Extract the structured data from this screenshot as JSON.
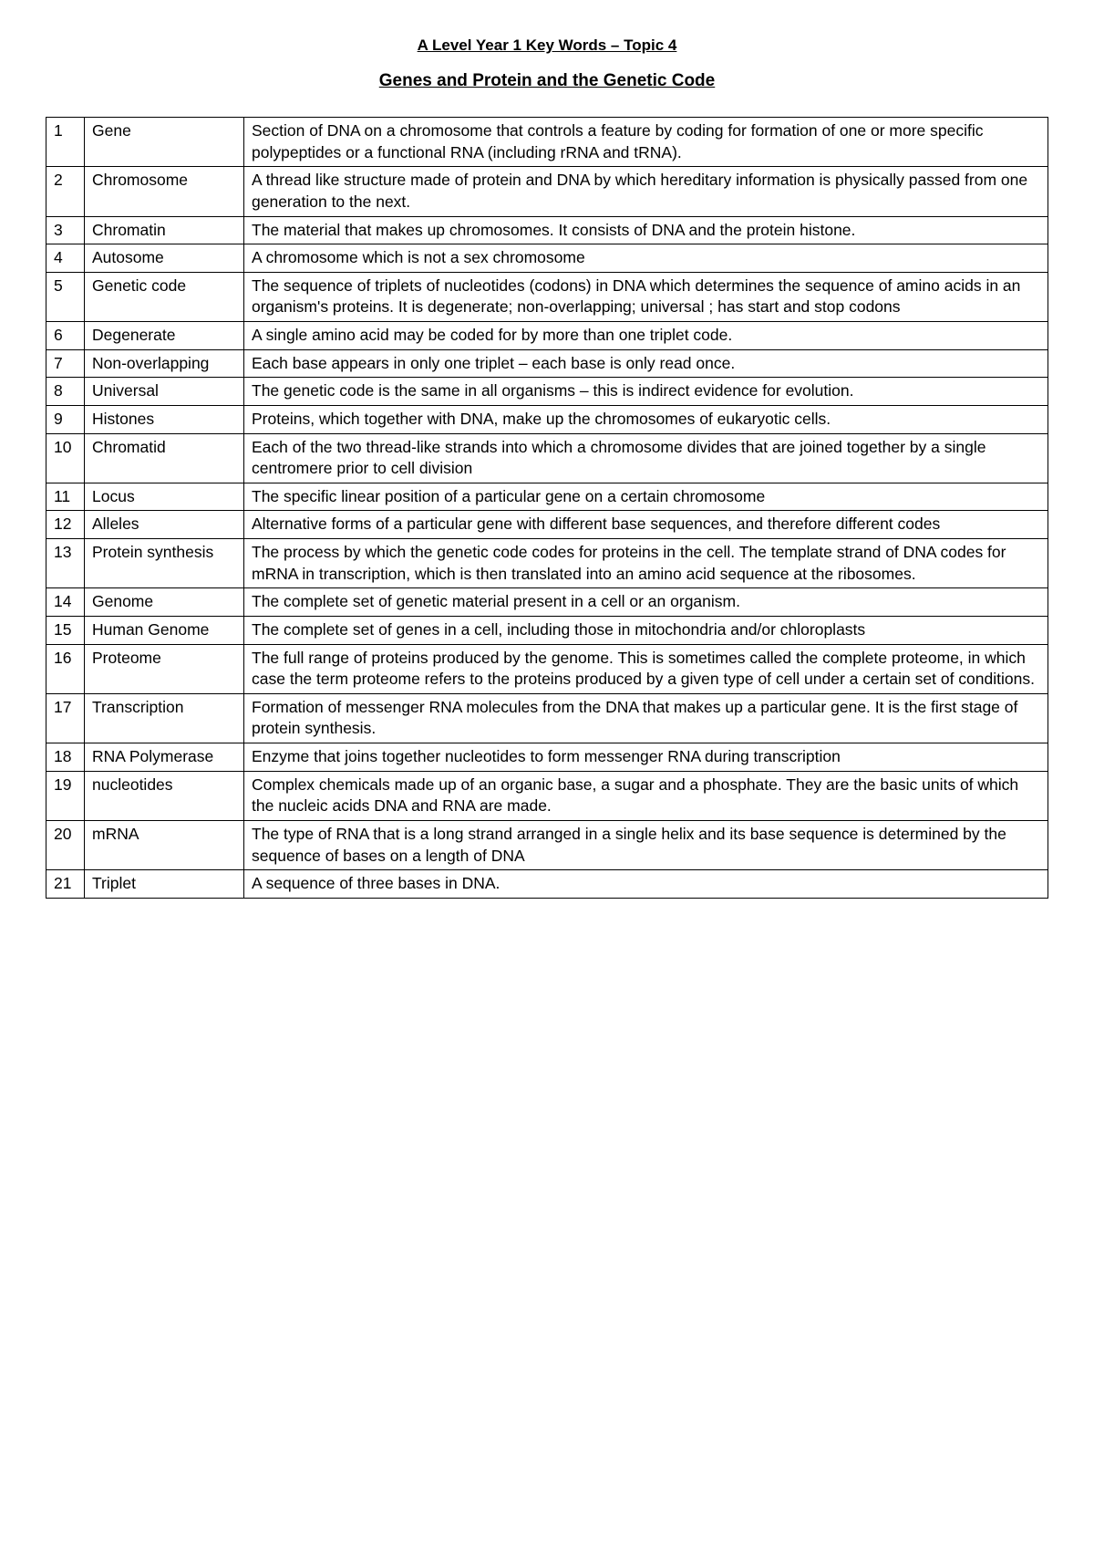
{
  "heading1": "A Level Year 1 Key Words – Topic 4",
  "heading2": "Genes and Protein and the Genetic Code",
  "columns": {
    "num_width": 42,
    "term_width": 175
  },
  "rows": [
    {
      "n": "1",
      "term": "Gene",
      "def": "Section of DNA on a chromosome that controls a feature by coding for formation of one or more specific polypeptides or a functional RNA (including rRNA and tRNA)."
    },
    {
      "n": "2",
      "term": "Chromosome",
      "def": "A thread like structure made of protein and DNA by which hereditary information is physically passed from one generation to the next."
    },
    {
      "n": "3",
      "term": "Chromatin",
      "def": "The material that makes up chromosomes. It consists of DNA and the protein histone."
    },
    {
      "n": "4",
      "term": "Autosome",
      "def": "A chromosome which is not a sex chromosome"
    },
    {
      "n": "5",
      "term": "Genetic code",
      "def": "The sequence of triplets of nucleotides (codons) in DNA which determines the sequence of amino acids in an organism's proteins. It is degenerate; non-overlapping; universal ; has start and stop codons"
    },
    {
      "n": "6",
      "term": "Degenerate",
      "def": "A single amino acid may be coded for by more than one triplet code."
    },
    {
      "n": "7",
      "term": "Non-overlapping",
      "def": "Each base appears in only one triplet – each base is only read once."
    },
    {
      "n": "8",
      "term": "Universal",
      "def": "The genetic code is the same in all organisms  – this is indirect evidence for evolution."
    },
    {
      "n": "9",
      "term": "Histones",
      "def": "Proteins, which together with DNA, make up the chromosomes of eukaryotic cells."
    },
    {
      "n": "10",
      "term": "Chromatid",
      "def": "Each of the two thread-like strands into which a chromosome divides that are joined together by a single centromere prior to cell division"
    },
    {
      "n": "11",
      "term": "Locus",
      "def": "The specific linear position of a particular gene on a certain chromosome"
    },
    {
      "n": "12",
      "term": "Alleles",
      "def": "Alternative forms of a particular gene with different base sequences, and therefore different codes"
    },
    {
      "n": "13",
      "term": "Protein synthesis",
      "def": "The process by which the genetic code codes for proteins in the cell. The template strand of DNA codes for mRNA in transcription, which is then translated into an amino acid sequence at the ribosomes."
    },
    {
      "n": "14",
      "term": "Genome",
      "def": "The complete set of genetic material present in a cell or an organism."
    },
    {
      "n": "15",
      "term": "Human Genome",
      "def": "The complete set of genes in a cell, including those in mitochondria and/or chloroplasts"
    },
    {
      "n": "16",
      "term": "Proteome",
      "def": "The full range of proteins produced by the genome. This is sometimes called the complete proteome, in which case the term proteome refers to the proteins produced by a given type of cell under a certain set of conditions."
    },
    {
      "n": "17",
      "term": "Transcription",
      "def": "Formation of messenger RNA molecules from the DNA that makes up a particular gene. It is the first stage of protein synthesis."
    },
    {
      "n": "18",
      "term": "RNA Polymerase",
      "def": "Enzyme that joins together nucleotides to form messenger RNA during transcription"
    },
    {
      "n": "19",
      "term": "nucleotides",
      "def": "Complex chemicals made up of an organic base, a sugar and a phosphate. They are the basic units of which the nucleic acids DNA and RNA are made."
    },
    {
      "n": "20",
      "term": "mRNA",
      "def": "The type of RNA that is a long strand arranged in a single helix and its base sequence is determined by the sequence of bases on a length of DNA"
    },
    {
      "n": "21",
      "term": "Triplet",
      "def": "A sequence of three bases in DNA."
    }
  ]
}
